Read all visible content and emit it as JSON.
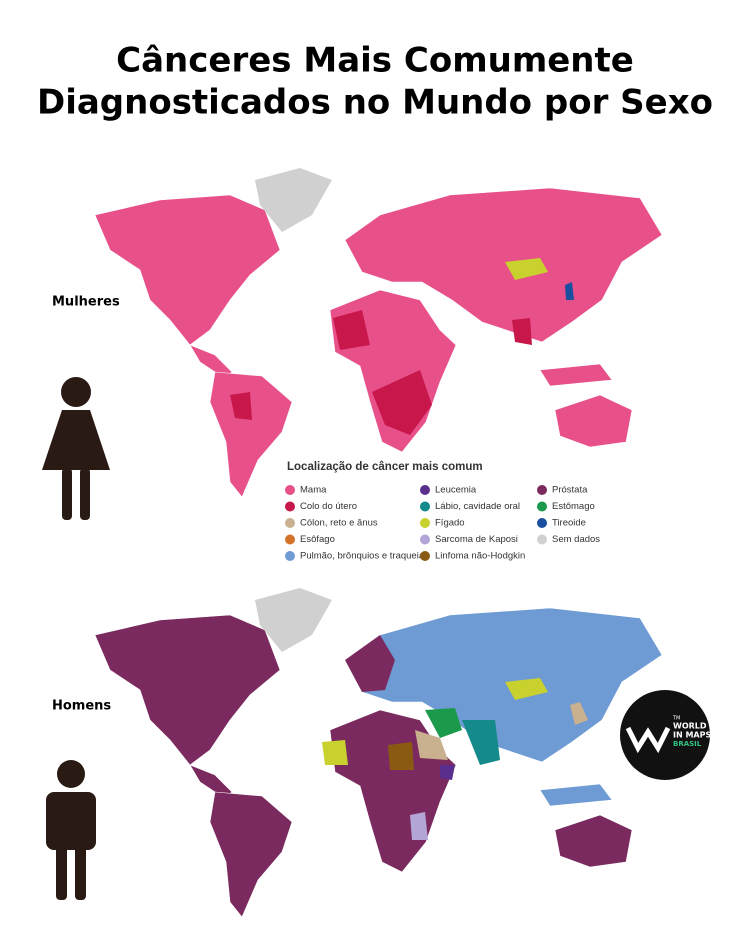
{
  "title": [
    "Cânceres Mais Comumente",
    "Diagnosticados no Mundo por Sexo"
  ],
  "maps": [
    {
      "label": "Mulheres"
    },
    {
      "label": "Homens"
    }
  ],
  "legend": {
    "title": "Localização de câncer mais comum",
    "items": [
      {
        "label": "Mama",
        "color": "#e8508a"
      },
      {
        "label": "Colo do útero",
        "color": "#c8174a"
      },
      {
        "label": "Cólon, reto e ânus",
        "color": "#c9b08f"
      },
      {
        "label": "Esôfago",
        "color": "#d4722a"
      },
      {
        "label": "Pulmão, brônquios e traqueia",
        "color": "#6f9bd4"
      },
      {
        "label": "Leucemia",
        "color": "#5a2e8c"
      },
      {
        "label": "Lábio, cavidade oral",
        "color": "#148a8a"
      },
      {
        "label": "Fígado",
        "color": "#c8d12e"
      },
      {
        "label": "Sarcoma de Kaposi",
        "color": "#b3a6d6"
      },
      {
        "label": "Linfoma não-Hodgkin",
        "color": "#8a5a12"
      },
      {
        "label": "Próstata",
        "color": "#7a2a5e"
      },
      {
        "label": "Estômago",
        "color": "#1a9a4a"
      },
      {
        "label": "Tireoide",
        "color": "#1a4fa0"
      },
      {
        "label": "Sem dados",
        "color": "#d0d0d0"
      }
    ]
  },
  "logo": {
    "mark": "TM",
    "lines": [
      "WORLD",
      "IN MAPS",
      "BRASIL"
    ]
  }
}
